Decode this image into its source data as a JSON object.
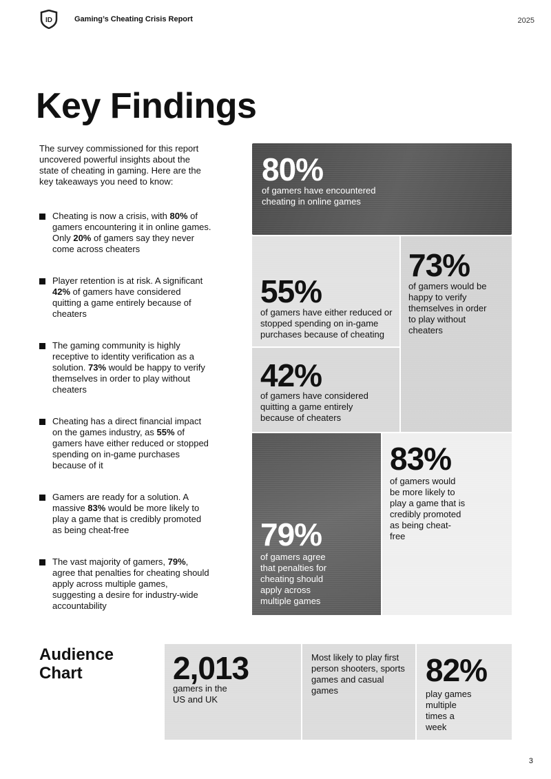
{
  "header": {
    "title": "Gaming’s Cheating Crisis Report",
    "year": "2025",
    "logo_text": "ID"
  },
  "page_title": "Key Findings",
  "intro": "The survey commissioned for this report uncovered powerful insights about the state of cheating in gaming. Here are the key takeaways you need to know:",
  "bullets": [
    {
      "parts": [
        "Cheating is now a crisis, with ",
        "80%",
        " of gamers encountering it in online games. Only ",
        "20%",
        " of gamers say they never come across cheaters"
      ]
    },
    {
      "parts": [
        "Player retention is at risk. A significant ",
        "42%",
        " of gamers have considered quitting a game entirely because of cheaters"
      ]
    },
    {
      "parts": [
        "The gaming community is highly receptive to identity verification as a solution. ",
        "73%",
        " would be happy to verify themselves in order to play without cheaters"
      ]
    },
    {
      "parts": [
        "Cheating has a direct financial impact on the games industry, as ",
        "55%",
        " of gamers have either reduced or stopped spending on in-game purchases because of it"
      ]
    },
    {
      "parts": [
        "Gamers are ready for a solution. A massive ",
        "83%",
        " would be more likely to play a game that is credibly promoted as being cheat-free"
      ]
    },
    {
      "parts": [
        "The vast majority of gamers, ",
        "79%",
        ", agree that penalties for cheating should apply across multiple games, suggesting a desire for industry-wide accountability"
      ]
    }
  ],
  "stats": [
    {
      "value": "80%",
      "caption": "of gamers have encountered cheating in online games"
    },
    {
      "value": "55%",
      "caption": "of gamers have either reduced or stopped spending on in-game purchases because of cheating"
    },
    {
      "value": "73%",
      "caption": "of gamers would be happy to verify themselves in order to play without cheaters"
    },
    {
      "value": "42%",
      "caption": "of gamers have considered quitting a game entirely because of cheaters"
    },
    {
      "value": "79%",
      "caption": "of gamers agree that penalties for cheating should apply across multiple games"
    },
    {
      "value": "83%",
      "caption": "of gamers would be more likely to play a game that is credibly promoted as being cheat-free"
    }
  ],
  "audience": {
    "title": "Audience Chart",
    "count": "2,013",
    "count_caption": "gamers in the US and UK",
    "genres": "Most likely to play first person shooters, sports games and casual games",
    "freq_value": "82%",
    "freq_caption": "play games multiple times a week"
  },
  "page_number": "3"
}
